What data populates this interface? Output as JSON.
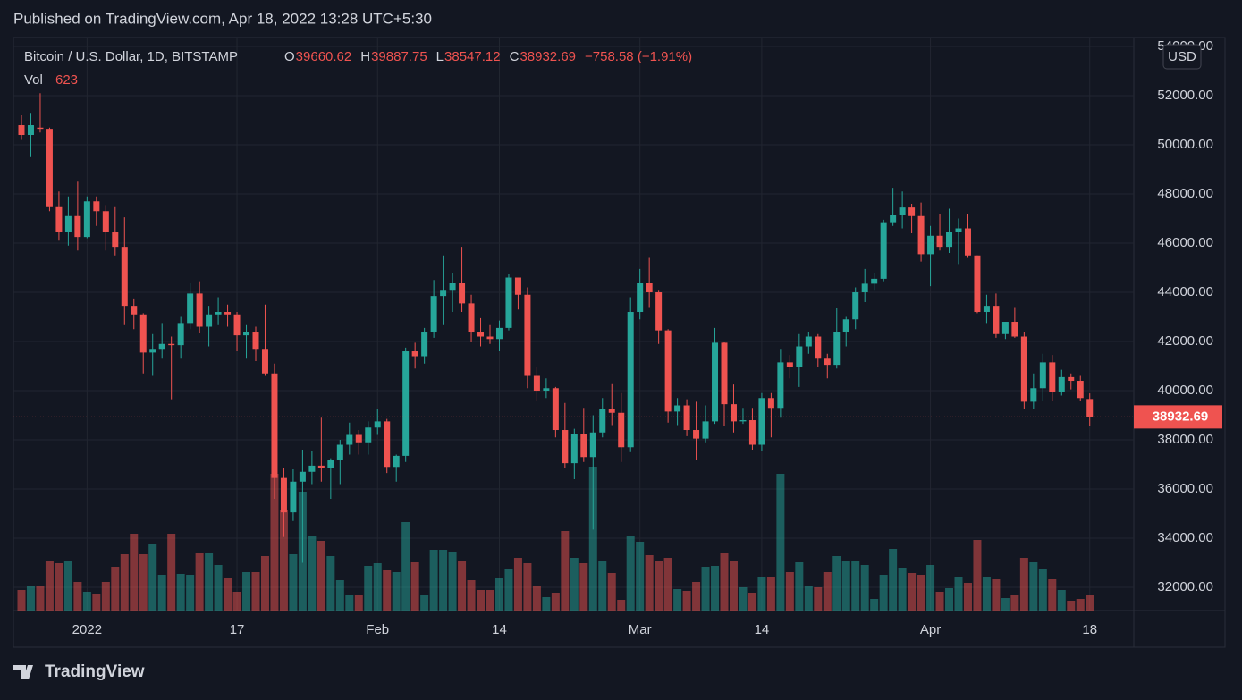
{
  "header": {
    "published": "Published on TradingView.com, Apr 18, 2022 13:28 UTC+5:30",
    "footer": "TradingView"
  },
  "chart_data": {
    "type": "candlestick",
    "symbol": "Bitcoin / U.S. Dollar, 1D, BITSTAMP",
    "legend": {
      "open": "O",
      "high": "H",
      "low": "L",
      "close": "C",
      "change": "−758.58 (−1.91%)",
      "volume": "Vol"
    },
    "currency": "USD",
    "up_color": "#26a69a",
    "down_color": "#ef5350",
    "ylim": [
      31055,
      54364
    ],
    "yticks": [
      {
        "value": 32000,
        "label": "32000.00"
      },
      {
        "value": 34000,
        "label": "34000.00"
      },
      {
        "value": 36000,
        "label": "36000.00"
      },
      {
        "value": 38000,
        "label": "38000.00"
      },
      {
        "value": 40000,
        "label": "40000.00"
      },
      {
        "value": 42000,
        "label": "42000.00"
      },
      {
        "value": 44000,
        "label": "44000.00"
      },
      {
        "value": 46000,
        "label": "46000.00"
      },
      {
        "value": 48000,
        "label": "48000.00"
      },
      {
        "value": 50000,
        "label": "50000.00"
      },
      {
        "value": 52000,
        "label": "52000.00"
      },
      {
        "value": 54000,
        "label": "54000.00"
      }
    ],
    "xticks": [
      {
        "value": 7,
        "label": "2022"
      },
      {
        "value": 23,
        "label": "17"
      },
      {
        "value": 38,
        "label": "Feb"
      },
      {
        "value": 51,
        "label": "14"
      },
      {
        "value": 66,
        "label": "Mar"
      },
      {
        "value": 79,
        "label": "14"
      },
      {
        "value": 97,
        "label": "Apr"
      },
      {
        "value": 114,
        "label": "18"
      }
    ],
    "ohlc": [
      [
        50800,
        51200,
        50200,
        50400
      ],
      [
        50400,
        51300,
        49500,
        50800
      ],
      [
        50700,
        52100,
        50500,
        50650
      ],
      [
        50650,
        50700,
        47300,
        47500
      ],
      [
        47500,
        48100,
        46100,
        46450
      ],
      [
        46450,
        47900,
        45900,
        47100
      ],
      [
        47100,
        48500,
        45700,
        46250
      ],
      [
        46250,
        47900,
        46200,
        47700
      ],
      [
        47700,
        47900,
        46700,
        47300
      ],
      [
        47300,
        47550,
        45700,
        46450
      ],
      [
        46450,
        47500,
        45500,
        45850
      ],
      [
        45850,
        47050,
        42700,
        43450
      ],
      [
        43450,
        43750,
        42500,
        43100
      ],
      [
        43100,
        43150,
        40700,
        41550
      ],
      [
        41550,
        42300,
        40600,
        41700
      ],
      [
        41700,
        42750,
        41300,
        41900
      ],
      [
        41900,
        42200,
        39650,
        41850
      ],
      [
        41850,
        43000,
        41300,
        42750
      ],
      [
        42750,
        44400,
        42500,
        43950
      ],
      [
        43950,
        44450,
        42350,
        42600
      ],
      [
        42600,
        43450,
        41800,
        43100
      ],
      [
        43100,
        43800,
        42700,
        43200
      ],
      [
        43200,
        43500,
        42600,
        43100
      ],
      [
        43100,
        43200,
        41600,
        42250
      ],
      [
        42250,
        42700,
        41300,
        42400
      ],
      [
        42400,
        42600,
        41200,
        41700
      ],
      [
        41700,
        43500,
        40600,
        40700
      ],
      [
        40700,
        41100,
        35600,
        36450
      ],
      [
        36450,
        36850,
        34050,
        35050
      ],
      [
        35050,
        36800,
        34700,
        36300
      ],
      [
        36300,
        37600,
        33000,
        36700
      ],
      [
        36700,
        37550,
        36200,
        36950
      ],
      [
        36950,
        38900,
        36300,
        36850
      ],
      [
        36850,
        37250,
        35600,
        37200
      ],
      [
        37200,
        38000,
        36200,
        37800
      ],
      [
        37800,
        38700,
        37400,
        38200
      ],
      [
        38200,
        38400,
        37400,
        37900
      ],
      [
        37900,
        38750,
        37400,
        38500
      ],
      [
        38500,
        39250,
        38200,
        38750
      ],
      [
        38750,
        38850,
        36650,
        36900
      ],
      [
        36900,
        37400,
        36300,
        37350
      ],
      [
        37350,
        41750,
        37100,
        41600
      ],
      [
        41600,
        41950,
        40900,
        41400
      ],
      [
        41400,
        42550,
        41100,
        42400
      ],
      [
        42400,
        44500,
        42150,
        43850
      ],
      [
        43850,
        45500,
        42700,
        44100
      ],
      [
        44100,
        44800,
        43200,
        44400
      ],
      [
        44400,
        45850,
        43200,
        43550
      ],
      [
        43550,
        43900,
        42000,
        42400
      ],
      [
        42400,
        42950,
        41800,
        42200
      ],
      [
        42200,
        42700,
        41900,
        42100
      ],
      [
        42100,
        42850,
        41600,
        42550
      ],
      [
        42550,
        44750,
        42450,
        44600
      ],
      [
        44600,
        44600,
        43300,
        43900
      ],
      [
        43900,
        44200,
        40100,
        40600
      ],
      [
        40600,
        40950,
        39600,
        40000
      ],
      [
        40000,
        40500,
        39700,
        40100
      ],
      [
        40100,
        40150,
        38100,
        38400
      ],
      [
        38400,
        39500,
        36850,
        37050
      ],
      [
        37050,
        38450,
        36400,
        38250
      ],
      [
        38250,
        39300,
        37100,
        37300
      ],
      [
        37300,
        39000,
        34350,
        38300
      ],
      [
        38300,
        39700,
        38100,
        39250
      ],
      [
        39250,
        40300,
        38600,
        39100
      ],
      [
        39100,
        39900,
        37100,
        37700
      ],
      [
        37700,
        43800,
        37500,
        43200
      ],
      [
        43200,
        44950,
        42900,
        44400
      ],
      [
        44400,
        45400,
        43400,
        44000
      ],
      [
        44000,
        44100,
        41900,
        42450
      ],
      [
        42450,
        42500,
        38700,
        39150
      ],
      [
        39150,
        39700,
        38600,
        39400
      ],
      [
        39400,
        39650,
        38150,
        38400
      ],
      [
        38400,
        39550,
        37200,
        38050
      ],
      [
        38050,
        39400,
        37900,
        38750
      ],
      [
        38750,
        42550,
        38650,
        41950
      ],
      [
        41950,
        42000,
        38550,
        39450
      ],
      [
        39450,
        40250,
        38300,
        38750
      ],
      [
        38750,
        39300,
        38650,
        38800
      ],
      [
        38800,
        39300,
        37600,
        37800
      ],
      [
        37800,
        39900,
        37550,
        39700
      ],
      [
        39700,
        39900,
        38100,
        39300
      ],
      [
        39300,
        41700,
        38900,
        41150
      ],
      [
        41150,
        41450,
        40500,
        40950
      ],
      [
        40950,
        42300,
        40150,
        41800
      ],
      [
        41800,
        42400,
        41500,
        42200
      ],
      [
        42200,
        42300,
        40950,
        41300
      ],
      [
        41300,
        41500,
        40500,
        41050
      ],
      [
        41050,
        43350,
        40900,
        42400
      ],
      [
        42400,
        43000,
        41800,
        42900
      ],
      [
        42900,
        44200,
        42500,
        44000
      ],
      [
        44000,
        44950,
        43600,
        44350
      ],
      [
        44350,
        44800,
        44100,
        44550
      ],
      [
        44550,
        46950,
        44450,
        46850
      ],
      [
        46850,
        48250,
        46700,
        47150
      ],
      [
        47150,
        48100,
        46600,
        47450
      ],
      [
        47450,
        47600,
        46400,
        47100
      ],
      [
        47100,
        47650,
        45250,
        45550
      ],
      [
        45550,
        46700,
        44250,
        46300
      ],
      [
        46300,
        47200,
        45700,
        45850
      ],
      [
        45850,
        47400,
        45600,
        46450
      ],
      [
        46450,
        47000,
        45150,
        46600
      ],
      [
        46600,
        47200,
        45400,
        45500
      ],
      [
        45500,
        45500,
        43150,
        43200
      ],
      [
        43200,
        43900,
        42750,
        43450
      ],
      [
        43450,
        43950,
        42150,
        42300
      ],
      [
        42300,
        42800,
        42100,
        42800
      ],
      [
        42800,
        43400,
        42150,
        42200
      ],
      [
        42200,
        42400,
        39250,
        39550
      ],
      [
        39550,
        40700,
        39250,
        40100
      ],
      [
        40100,
        41500,
        39600,
        41150
      ],
      [
        41150,
        41450,
        39600,
        39950
      ],
      [
        39950,
        40850,
        39800,
        40550
      ],
      [
        40550,
        40700,
        40050,
        40400
      ],
      [
        40400,
        40600,
        39600,
        39700
      ],
      [
        39660.62,
        39887.75,
        38547.12,
        38932.69
      ]
    ],
    "volume": [
      805,
      945,
      980,
      1960,
      1855,
      1960,
      1120,
      735,
      665,
      1120,
      1715,
      2205,
      3010,
      2205,
      2625,
      1400,
      3010,
      1435,
      1400,
      2240,
      2240,
      1785,
      1260,
      735,
      1505,
      1505,
      2135,
      5355,
      3955,
      2205,
      4655,
      2905,
      2730,
      2135,
      1190,
      630,
      630,
      1750,
      1855,
      1575,
      1505,
      3465,
      1890,
      595,
      2380,
      2380,
      2275,
      1960,
      1190,
      805,
      805,
      1260,
      1610,
      2065,
      1855,
      945,
      525,
      700,
      3115,
      2065,
      1855,
      5635,
      1960,
      1470,
      420,
      2905,
      2695,
      2170,
      1925,
      2065,
      840,
      770,
      1120,
      1715,
      1750,
      2240,
      1925,
      910,
      700,
      1330,
      1330,
      5355,
      1505,
      1890,
      945,
      910,
      1505,
      2135,
      1925,
      1960,
      1785,
      455,
      1400,
      2415,
      1680,
      1470,
      1400,
      1785,
      735,
      875,
      1330,
      1085,
      2765,
      1330,
      1225,
      490,
      630,
      2065,
      1890,
      1610,
      1225,
      805,
      385,
      455,
      623
    ]
  }
}
